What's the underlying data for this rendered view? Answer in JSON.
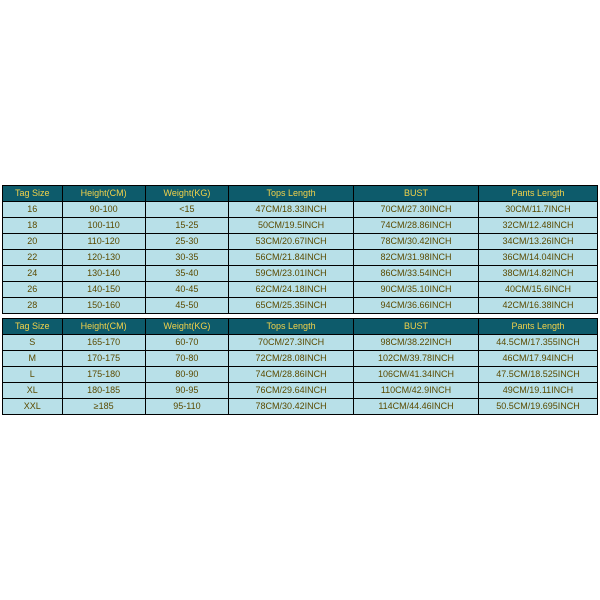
{
  "colors": {
    "header_bg": "#0d5b6b",
    "header_text": "#f2d24a",
    "row_bg": "#b8e0e8",
    "row_text": "#5a4a00",
    "border": "#000000"
  },
  "table1": {
    "headers": [
      "Tag Size",
      "Height(CM)",
      "Weight(KG)",
      "Tops Length",
      "BUST",
      "Pants Length"
    ],
    "rows": [
      [
        "16",
        "90-100",
        "<15",
        "47CM/18.33INCH",
        "70CM/27.30INCH",
        "30CM/11.7INCH"
      ],
      [
        "18",
        "100-110",
        "15-25",
        "50CM/19.5INCH",
        "74CM/28.86INCH",
        "32CM/12.48INCH"
      ],
      [
        "20",
        "110-120",
        "25-30",
        "53CM/20.67INCH",
        "78CM/30.42INCH",
        "34CM/13.26INCH"
      ],
      [
        "22",
        "120-130",
        "30-35",
        "56CM/21.84INCH",
        "82CM/31.98INCH",
        "36CM/14.04INCH"
      ],
      [
        "24",
        "130-140",
        "35-40",
        "59CM/23.01INCH",
        "86CM/33.54INCH",
        "38CM/14.82INCH"
      ],
      [
        "26",
        "140-150",
        "40-45",
        "62CM/24.18INCH",
        "90CM/35.10INCH",
        "40CM/15.6INCH"
      ],
      [
        "28",
        "150-160",
        "45-50",
        "65CM/25.35INCH",
        "94CM/36.66INCH",
        "42CM/16.38INCH"
      ]
    ]
  },
  "table2": {
    "headers": [
      "Tag Size",
      "Height(CM)",
      "Weight(KG)",
      "Tops Length",
      "BUST",
      "Pants Length"
    ],
    "rows": [
      [
        "S",
        "165-170",
        "60-70",
        "70CM/27.3INCH",
        "98CM/38.22INCH",
        "44.5CM/17.355INCH"
      ],
      [
        "M",
        "170-175",
        "70-80",
        "72CM/28.08INCH",
        "102CM/39.78INCH",
        "46CM/17.94INCH"
      ],
      [
        "L",
        "175-180",
        "80-90",
        "74CM/28.86INCH",
        "106CM/41.34INCH",
        "47.5CM/18.525INCH"
      ],
      [
        "XL",
        "180-185",
        "90-95",
        "76CM/29.64INCH",
        "110CM/42.9INCH",
        "49CM/19.11INCH"
      ],
      [
        "XXL",
        "≥185",
        "95-110",
        "78CM/30.42INCH",
        "114CM/44.46INCH",
        "50.5CM/19.695INCH"
      ]
    ]
  }
}
